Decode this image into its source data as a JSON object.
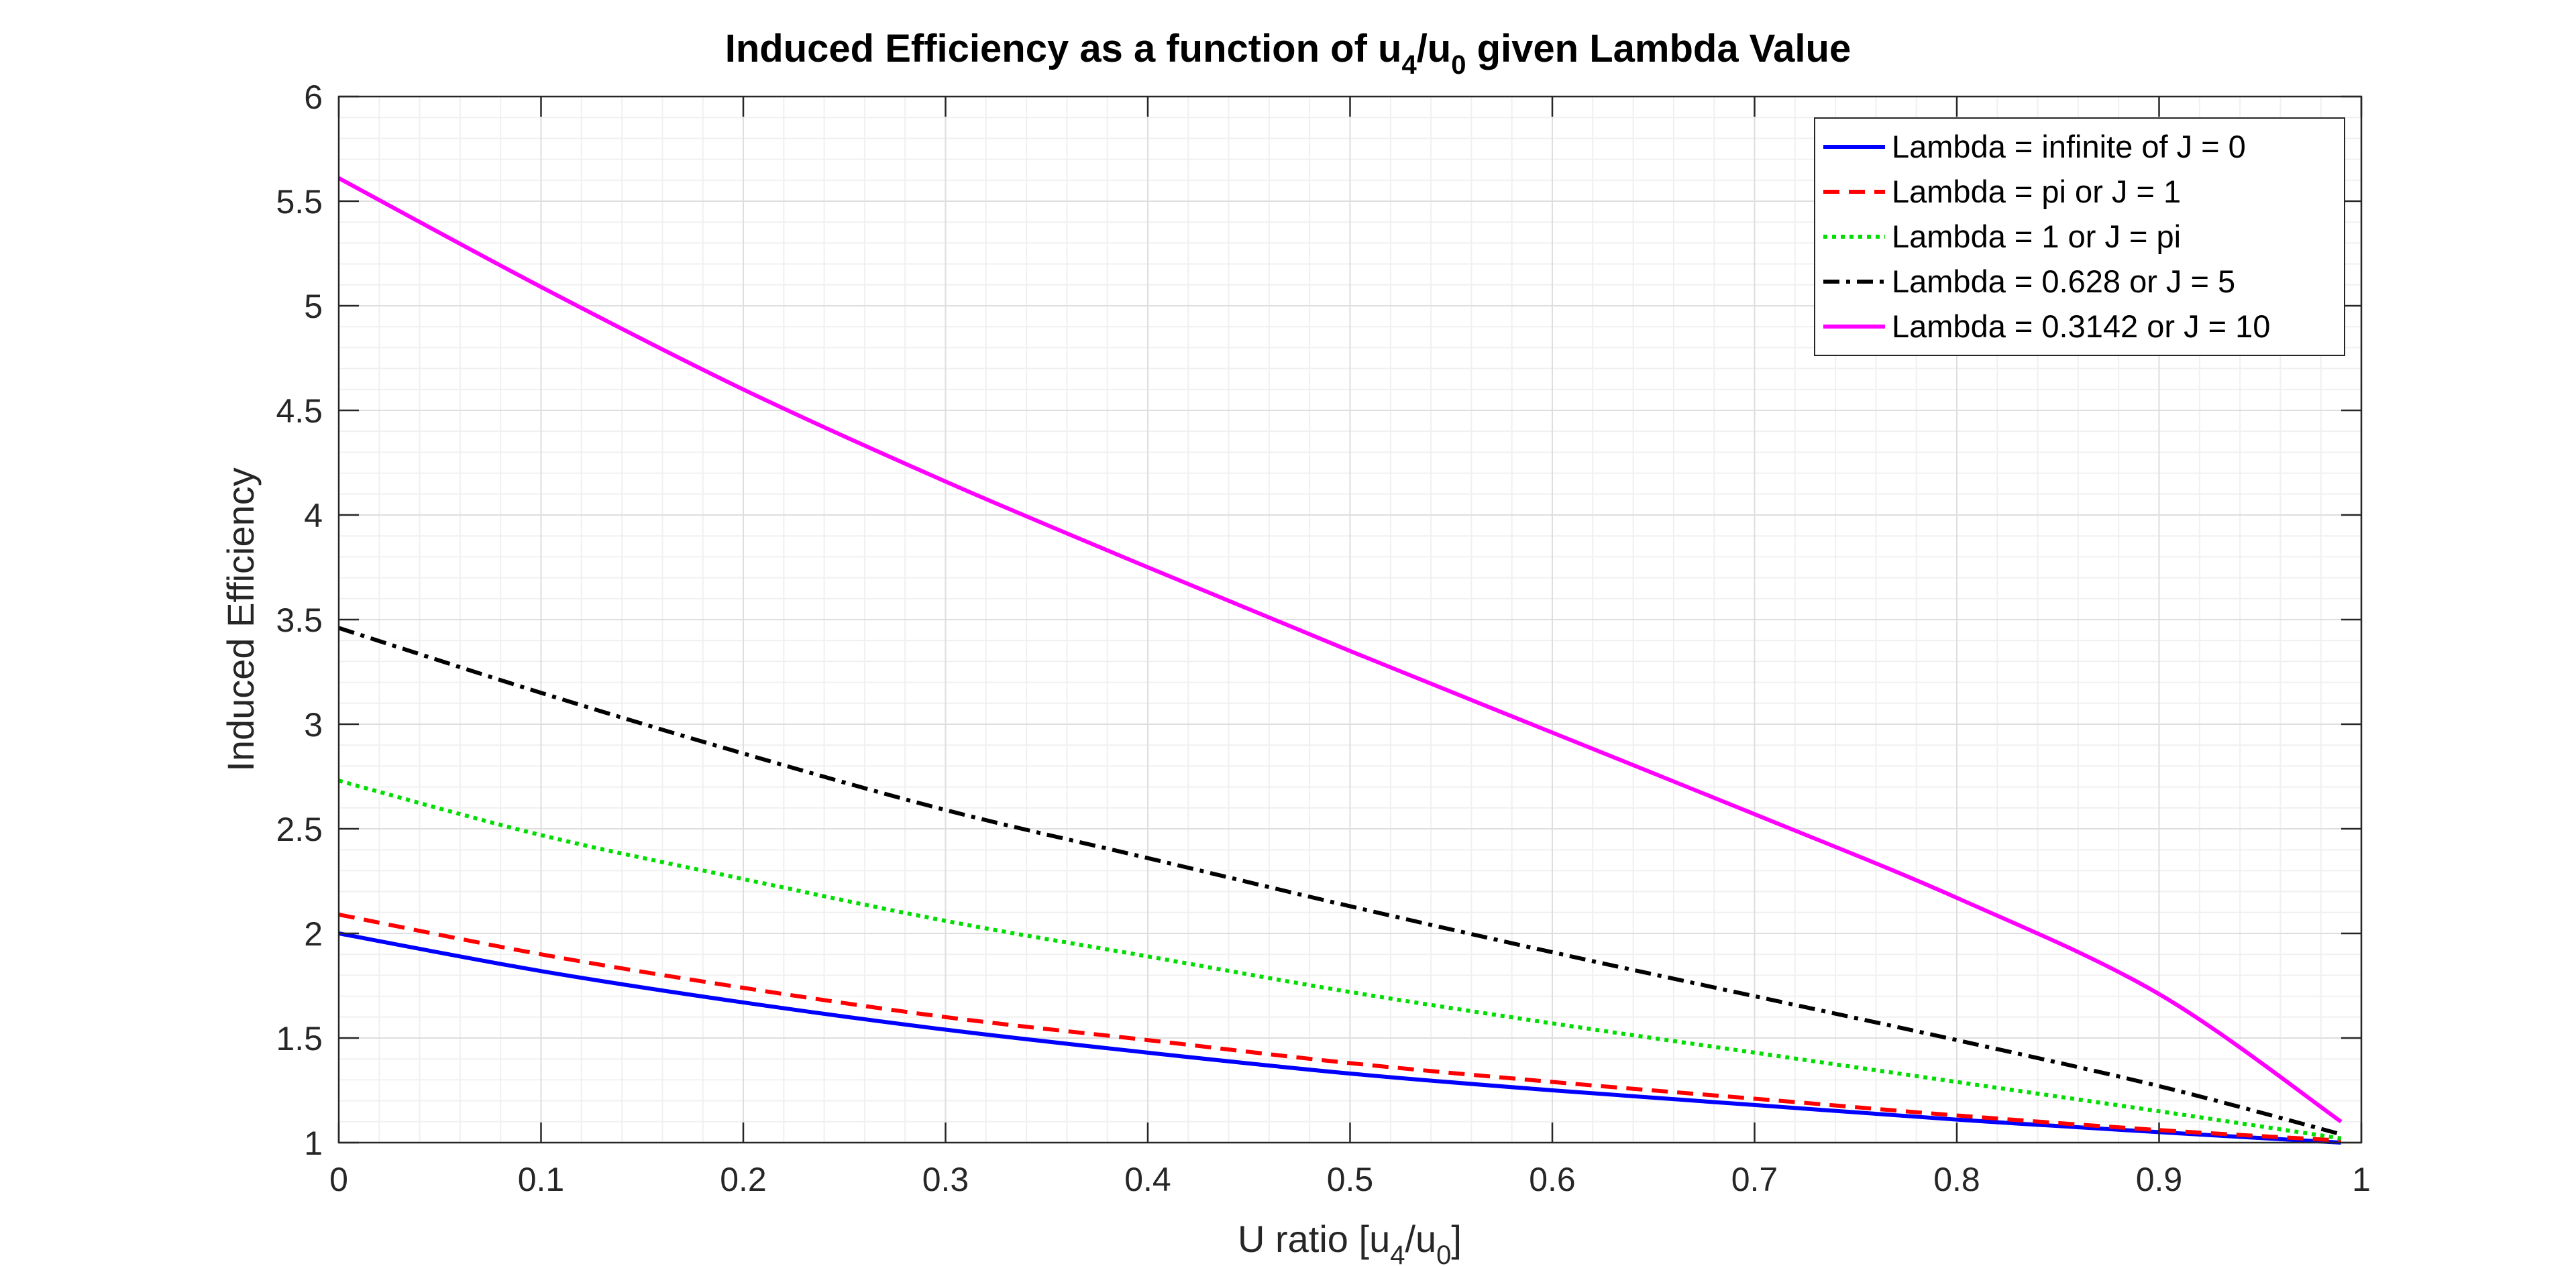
{
  "chart_data": {
    "type": "line",
    "title": {
      "prefix": "Induced Efficiency as a function of u",
      "sub1": "4",
      "mid": "/u",
      "sub2": "0",
      "suffix": " given Lambda Value"
    },
    "xlabel": {
      "prefix": "U ratio [u",
      "sub1": "4",
      "mid": "/u",
      "sub2": "0",
      "suffix": "]"
    },
    "ylabel": "Induced Efficiency",
    "xlim": [
      0,
      1
    ],
    "ylim": [
      1,
      6
    ],
    "xticks": [
      "0",
      "0.1",
      "0.2",
      "0.3",
      "0.4",
      "0.5",
      "0.6",
      "0.7",
      "0.8",
      "0.9",
      "1"
    ],
    "yticks": [
      "1",
      "1.5",
      "2",
      "2.5",
      "3",
      "3.5",
      "4",
      "4.5",
      "5",
      "5.5",
      "6"
    ],
    "grid": true,
    "minor_grid": true,
    "legend_position": "top-right",
    "x": [
      0,
      0.1,
      0.2,
      0.3,
      0.4,
      0.5,
      0.6,
      0.7,
      0.8,
      0.9,
      0.99
    ],
    "series": [
      {
        "name": "Lambda = infinite of J = 0",
        "color": "#0000ff",
        "dash": "solid",
        "values": [
          2.0,
          1.82,
          1.67,
          1.54,
          1.43,
          1.33,
          1.25,
          1.18,
          1.11,
          1.05,
          1.0
        ]
      },
      {
        "name": "Lambda = pi or J = 1",
        "color": "#ff0000",
        "dash": "dashed",
        "values": [
          2.09,
          1.9,
          1.74,
          1.6,
          1.49,
          1.38,
          1.29,
          1.21,
          1.13,
          1.06,
          1.01
        ]
      },
      {
        "name": "Lambda = 1 or J = pi",
        "color": "#00dd00",
        "dash": "dotted",
        "values": [
          2.73,
          2.47,
          2.26,
          2.06,
          1.89,
          1.72,
          1.57,
          1.43,
          1.29,
          1.15,
          1.02
        ]
      },
      {
        "name": "Lambda = 0.628 or J = 5",
        "color": "#000000",
        "dash": "dashdot",
        "values": [
          3.46,
          3.15,
          2.86,
          2.59,
          2.36,
          2.13,
          1.91,
          1.7,
          1.49,
          1.27,
          1.04
        ]
      },
      {
        "name": "Lambda = 0.3142 or J = 10",
        "color": "#ff00ff",
        "dash": "solid",
        "values": [
          5.61,
          5.09,
          4.6,
          4.16,
          3.75,
          3.35,
          2.96,
          2.57,
          2.17,
          1.71,
          1.1
        ]
      }
    ]
  }
}
